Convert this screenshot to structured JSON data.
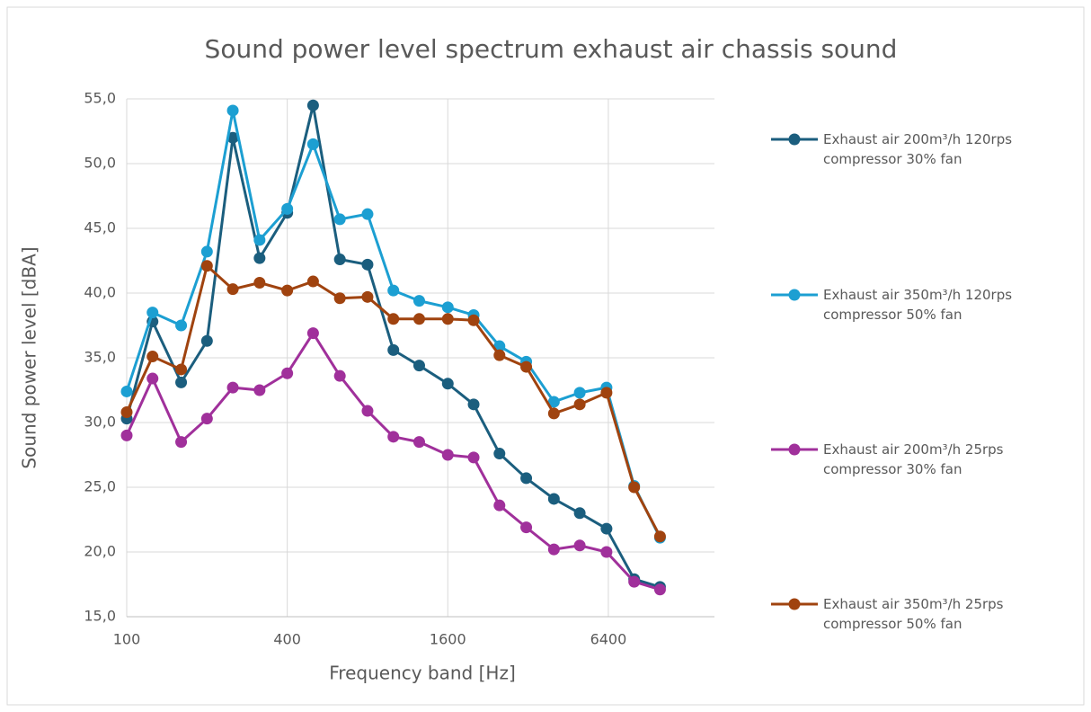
{
  "chart_data": {
    "type": "line",
    "title": "Sound power level spectrum exhaust air chassis sound",
    "x_label": "Frequency band [Hz]",
    "y_label": "Sound power level [dBA]",
    "log_x": true,
    "grid": true,
    "legend": "right",
    "x": [
      100,
      125,
      160,
      200,
      250,
      315,
      400,
      500,
      630,
      800,
      1000,
      1250,
      1600,
      2000,
      2500,
      3150,
      4000,
      5000,
      6300,
      8000,
      10000
    ],
    "xlim": [
      100,
      16000
    ],
    "xticks": [
      100,
      400,
      1600,
      6400
    ],
    "ylim": [
      15,
      55
    ],
    "yticks": [
      {
        "value": 15,
        "label": "15,0"
      },
      {
        "value": 20,
        "label": "20,0"
      },
      {
        "value": 25,
        "label": "25,0"
      },
      {
        "value": 30,
        "label": "30,0"
      },
      {
        "value": 35,
        "label": "35,0"
      },
      {
        "value": 40,
        "label": "40,0"
      },
      {
        "value": 45,
        "label": "45,0"
      },
      {
        "value": 50,
        "label": "50,0"
      },
      {
        "value": 55,
        "label": "55,0"
      }
    ],
    "series": [
      {
        "name": "Exhaust air 200m³/h 120rps compressor 30% fan",
        "color": "#1b5e7e",
        "values": [
          30.3,
          37.8,
          33.1,
          36.3,
          52.0,
          42.7,
          46.2,
          54.5,
          42.6,
          42.2,
          35.6,
          34.4,
          33.0,
          31.4,
          27.6,
          25.7,
          24.1,
          23.0,
          21.8,
          17.9,
          17.3
        ]
      },
      {
        "name": "Exhaust air 350m³/h 120rps compressor 50% fan",
        "color": "#1c9fd2",
        "values": [
          32.4,
          38.5,
          37.5,
          43.2,
          54.1,
          44.1,
          46.5,
          51.5,
          45.7,
          46.1,
          40.2,
          39.4,
          38.9,
          38.3,
          35.9,
          34.7,
          31.6,
          32.3,
          32.7,
          25.1,
          21.1
        ]
      },
      {
        "name": "Exhaust air 200m³/h 25rps compressor 30% fan",
        "color": "#a0309b",
        "values": [
          29.0,
          33.4,
          28.5,
          30.3,
          32.7,
          32.5,
          33.8,
          36.9,
          33.6,
          30.9,
          28.9,
          28.5,
          27.5,
          27.3,
          23.6,
          21.9,
          20.2,
          20.5,
          20.0,
          17.7,
          17.1
        ]
      },
      {
        "name": "Exhaust air 350m³/h 25rps compressor 50% fan",
        "color": "#a0430f",
        "values": [
          30.8,
          35.1,
          34.1,
          42.1,
          40.3,
          40.8,
          40.2,
          40.9,
          39.6,
          39.7,
          38.0,
          38.0,
          38.0,
          37.9,
          35.2,
          34.3,
          30.7,
          31.4,
          32.3,
          25.0,
          21.2
        ]
      }
    ]
  }
}
